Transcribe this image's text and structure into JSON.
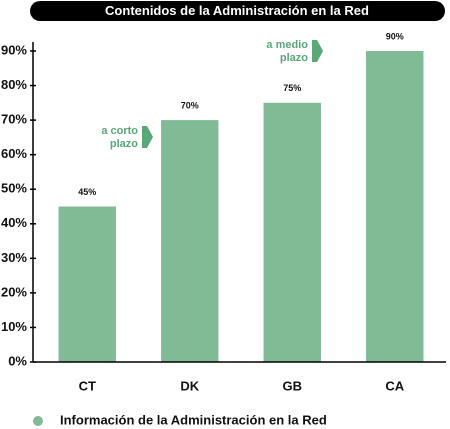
{
  "chart_data": {
    "type": "bar",
    "title": "Contenidos de la Administración en la Red",
    "categories": [
      "CT",
      "DK",
      "GB",
      "CA"
    ],
    "series": [
      {
        "name": "Información de la Administración en la Red",
        "color": "#80bb96",
        "values": [
          45,
          70,
          75,
          90
        ],
        "value_labels": [
          "45%",
          "70%",
          "75%",
          "90%"
        ]
      }
    ],
    "ylim": [
      0,
      90
    ],
    "yticks": [
      {
        "value": 0,
        "label": "0%"
      },
      {
        "value": 10,
        "label": "10%"
      },
      {
        "value": 20,
        "label": "20%"
      },
      {
        "value": 30,
        "label": "30%"
      },
      {
        "value": 40,
        "label": "40%"
      },
      {
        "value": 50,
        "label": "50%"
      },
      {
        "value": 60,
        "label": "60%"
      },
      {
        "value": 70,
        "label": "70%"
      },
      {
        "value": 80,
        "label": "80%"
      },
      {
        "value": 90,
        "label": "90%"
      }
    ],
    "grid": false,
    "annotations": [
      {
        "lines": [
          "a corto",
          "plazo"
        ]
      },
      {
        "lines": [
          "a medio",
          "plazo"
        ]
      }
    ]
  }
}
